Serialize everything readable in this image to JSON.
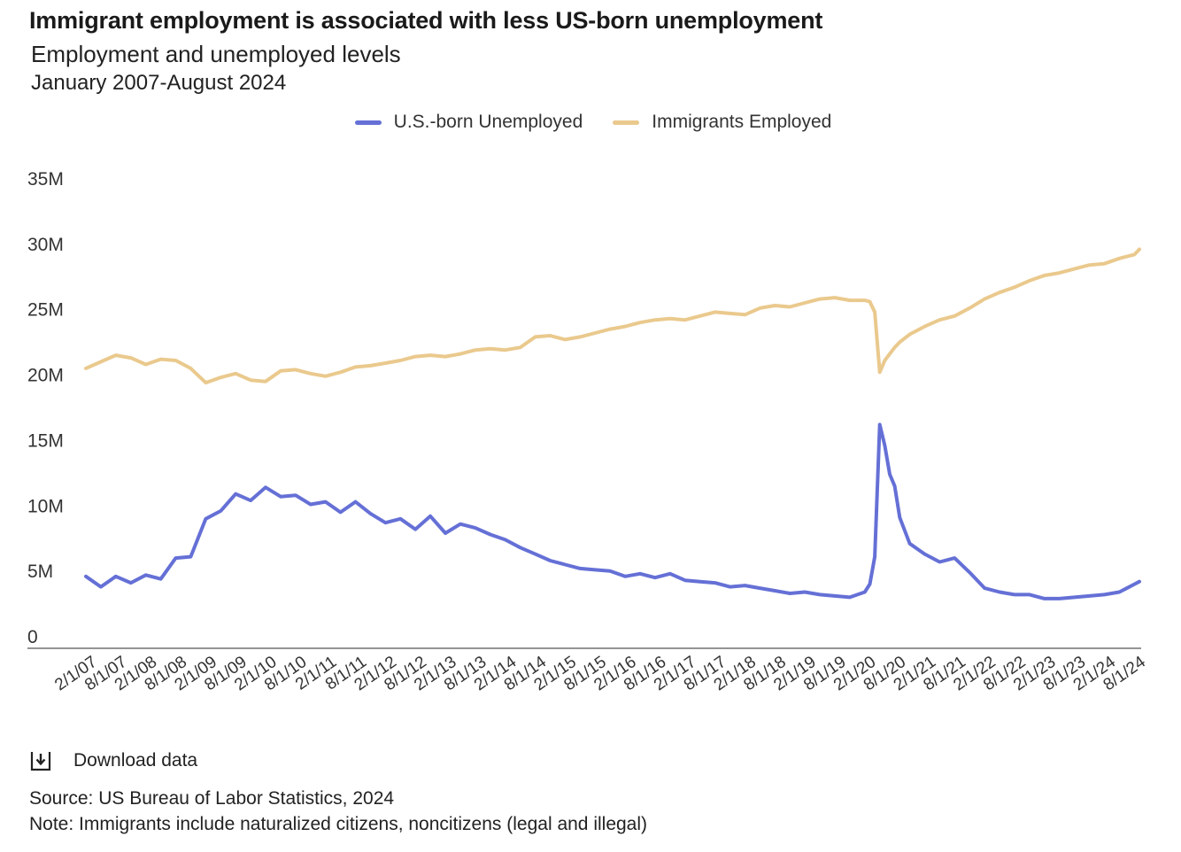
{
  "header": {
    "title": "Immigrant employment is associated with less US-born unemployment",
    "subtitle": "Employment and unemployed levels",
    "date_range": "January 2007-August 2024"
  },
  "footer": {
    "download_label": "Download data",
    "source": "Source: US Bureau of Labor Statistics, 2024",
    "note": "Note: Immigrants include naturalized citizens, noncitizens (legal and illegal)"
  },
  "chart_data": {
    "type": "line",
    "title": "Immigrant employment is associated with less US-born unemployment",
    "subtitle": "Employment and unemployed levels",
    "ylim": [
      0,
      35000000
    ],
    "y_ticks": [
      {
        "value": 0,
        "label": "0"
      },
      {
        "value": 5000000,
        "label": "5M"
      },
      {
        "value": 10000000,
        "label": "10M"
      },
      {
        "value": 15000000,
        "label": "15M"
      },
      {
        "value": 20000000,
        "label": "20M"
      },
      {
        "value": 25000000,
        "label": "25M"
      },
      {
        "value": 30000000,
        "label": "30M"
      },
      {
        "value": 35000000,
        "label": "35M"
      }
    ],
    "x_range": [
      "2007-01",
      "2024-08"
    ],
    "x_tick_labels": [
      "2/1/07",
      "8/1/07",
      "2/1/08",
      "8/1/08",
      "2/1/09",
      "8/1/09",
      "2/1/10",
      "8/1/10",
      "2/1/11",
      "8/1/11",
      "2/1/12",
      "8/1/12",
      "2/1/13",
      "8/1/13",
      "2/1/14",
      "8/1/14",
      "2/1/15",
      "8/1/15",
      "2/1/16",
      "8/1/16",
      "2/1/17",
      "8/1/17",
      "2/1/18",
      "8/1/18",
      "2/1/19",
      "8/1/19",
      "2/1/20",
      "8/1/20",
      "2/1/21",
      "8/1/21",
      "2/1/22",
      "8/1/22",
      "2/1/23",
      "8/1/23",
      "2/1/24",
      "8/1/24"
    ],
    "grid": false,
    "legend_position": "top-center",
    "series": [
      {
        "name": "U.S.-born Unemployed",
        "color": "#6570d6",
        "x": [
          "2007-01",
          "2007-04",
          "2007-07",
          "2007-10",
          "2008-01",
          "2008-04",
          "2008-07",
          "2008-10",
          "2009-01",
          "2009-04",
          "2009-07",
          "2009-10",
          "2010-01",
          "2010-04",
          "2010-07",
          "2010-10",
          "2011-01",
          "2011-04",
          "2011-07",
          "2011-10",
          "2012-01",
          "2012-04",
          "2012-07",
          "2012-10",
          "2013-01",
          "2013-04",
          "2013-07",
          "2013-10",
          "2014-01",
          "2014-04",
          "2014-07",
          "2014-10",
          "2015-01",
          "2015-04",
          "2015-07",
          "2015-10",
          "2016-01",
          "2016-04",
          "2016-07",
          "2016-10",
          "2017-01",
          "2017-04",
          "2017-07",
          "2017-10",
          "2018-01",
          "2018-04",
          "2018-07",
          "2018-10",
          "2019-01",
          "2019-04",
          "2019-07",
          "2019-10",
          "2020-01",
          "2020-02",
          "2020-03",
          "2020-04",
          "2020-05",
          "2020-06",
          "2020-07",
          "2020-08",
          "2020-10",
          "2021-01",
          "2021-04",
          "2021-07",
          "2021-10",
          "2022-01",
          "2022-04",
          "2022-07",
          "2022-10",
          "2023-01",
          "2023-04",
          "2023-07",
          "2023-10",
          "2024-01",
          "2024-04",
          "2024-07",
          "2024-08"
        ],
        "values": [
          5500000,
          4700000,
          5500000,
          5000000,
          5600000,
          5300000,
          6900000,
          7000000,
          9900000,
          10500000,
          11800000,
          11300000,
          12300000,
          11600000,
          11700000,
          11000000,
          11200000,
          10400000,
          11200000,
          10300000,
          9600000,
          9900000,
          9100000,
          10100000,
          8800000,
          9500000,
          9200000,
          8700000,
          8300000,
          7700000,
          7200000,
          6700000,
          6400000,
          6100000,
          6000000,
          5900000,
          5500000,
          5700000,
          5400000,
          5700000,
          5200000,
          5100000,
          5000000,
          4700000,
          4800000,
          4600000,
          4400000,
          4200000,
          4300000,
          4100000,
          4000000,
          3900000,
          4300000,
          4900000,
          7000000,
          17100000,
          15500000,
          13300000,
          12400000,
          10000000,
          8000000,
          7200000,
          6600000,
          6900000,
          5800000,
          4600000,
          4300000,
          4100000,
          4100000,
          3800000,
          3800000,
          3900000,
          4000000,
          4100000,
          4300000,
          4900000,
          5100000
        ]
      },
      {
        "name": "Immigrants Employed",
        "color": "#eac98d",
        "x": [
          "2007-01",
          "2007-04",
          "2007-07",
          "2007-10",
          "2008-01",
          "2008-04",
          "2008-07",
          "2008-10",
          "2009-01",
          "2009-04",
          "2009-07",
          "2009-10",
          "2010-01",
          "2010-04",
          "2010-07",
          "2010-10",
          "2011-01",
          "2011-04",
          "2011-07",
          "2011-10",
          "2012-01",
          "2012-04",
          "2012-07",
          "2012-10",
          "2013-01",
          "2013-04",
          "2013-07",
          "2013-10",
          "2014-01",
          "2014-04",
          "2014-07",
          "2014-10",
          "2015-01",
          "2015-04",
          "2015-07",
          "2015-10",
          "2016-01",
          "2016-04",
          "2016-07",
          "2016-10",
          "2017-01",
          "2017-04",
          "2017-07",
          "2017-10",
          "2018-01",
          "2018-04",
          "2018-07",
          "2018-10",
          "2019-01",
          "2019-04",
          "2019-07",
          "2019-10",
          "2020-01",
          "2020-02",
          "2020-03",
          "2020-04",
          "2020-05",
          "2020-06",
          "2020-07",
          "2020-08",
          "2020-10",
          "2021-01",
          "2021-04",
          "2021-07",
          "2021-10",
          "2022-01",
          "2022-04",
          "2022-07",
          "2022-10",
          "2023-01",
          "2023-04",
          "2023-07",
          "2023-10",
          "2024-01",
          "2024-04",
          "2024-07",
          "2024-08"
        ],
        "values": [
          21400000,
          21900000,
          22400000,
          22200000,
          21700000,
          22100000,
          22000000,
          21400000,
          20300000,
          20700000,
          21000000,
          20500000,
          20400000,
          21200000,
          21300000,
          21000000,
          20800000,
          21100000,
          21500000,
          21600000,
          21800000,
          22000000,
          22300000,
          22400000,
          22300000,
          22500000,
          22800000,
          22900000,
          22800000,
          23000000,
          23800000,
          23900000,
          23600000,
          23800000,
          24100000,
          24400000,
          24600000,
          24900000,
          25100000,
          25200000,
          25100000,
          25400000,
          25700000,
          25600000,
          25500000,
          26000000,
          26200000,
          26100000,
          26400000,
          26700000,
          26800000,
          26600000,
          26600000,
          26500000,
          25700000,
          21100000,
          22000000,
          22500000,
          23000000,
          23400000,
          24000000,
          24600000,
          25100000,
          25400000,
          26000000,
          26700000,
          27200000,
          27600000,
          28100000,
          28500000,
          28700000,
          29000000,
          29300000,
          29400000,
          29800000,
          30100000,
          30500000
        ]
      }
    ]
  }
}
